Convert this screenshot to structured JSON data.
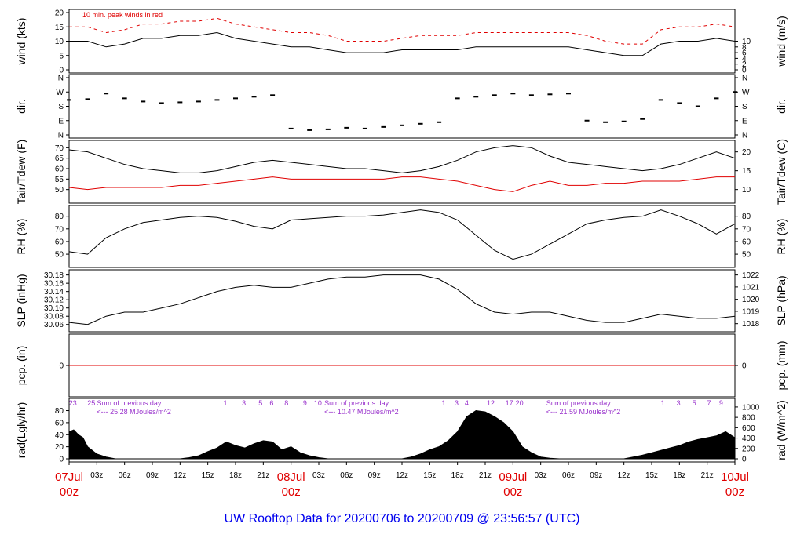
{
  "title": "UW Rooftop Data for 20200706  to  20200709 @ 23:56:57  (UTC)",
  "colors": {
    "frame": "#000000",
    "series_primary": "#000000",
    "series_red": "#e00000",
    "annotation": "#9932cc",
    "date_label": "#e00000",
    "title": "#0000ee",
    "zero_line": "#e00000"
  },
  "x_axis": {
    "range_hours": [
      0,
      72
    ],
    "ticks": [
      {
        "hour": 3,
        "label": "03z"
      },
      {
        "hour": 6,
        "label": "06z"
      },
      {
        "hour": 9,
        "label": "09z"
      },
      {
        "hour": 12,
        "label": "12z"
      },
      {
        "hour": 15,
        "label": "15z"
      },
      {
        "hour": 18,
        "label": "18z"
      },
      {
        "hour": 21,
        "label": "21z"
      },
      {
        "hour": 27,
        "label": "03z"
      },
      {
        "hour": 30,
        "label": "06z"
      },
      {
        "hour": 33,
        "label": "09z"
      },
      {
        "hour": 36,
        "label": "12z"
      },
      {
        "hour": 39,
        "label": "15z"
      },
      {
        "hour": 42,
        "label": "18z"
      },
      {
        "hour": 45,
        "label": "21z"
      },
      {
        "hour": 51,
        "label": "03z"
      },
      {
        "hour": 54,
        "label": "06z"
      },
      {
        "hour": 57,
        "label": "09z"
      },
      {
        "hour": 60,
        "label": "12z"
      },
      {
        "hour": 63,
        "label": "15z"
      },
      {
        "hour": 66,
        "label": "18z"
      },
      {
        "hour": 69,
        "label": "21z"
      }
    ],
    "day_labels": [
      {
        "hour": 0,
        "date": "07Jul",
        "time": "00z"
      },
      {
        "hour": 24,
        "date": "08Jul",
        "time": "00z"
      },
      {
        "hour": 48,
        "date": "09Jul",
        "time": "00z"
      },
      {
        "hour": 72,
        "date": "10Jul",
        "time": "00z"
      }
    ]
  },
  "chart_data": [
    {
      "type": "line",
      "name": "wind",
      "ylabel_left": "wind (kts)",
      "ylabel_right": "wind (m/s)",
      "ylim": [
        0,
        20
      ],
      "yticks_left": [
        0,
        5,
        10,
        15,
        20
      ],
      "yticks_right": [
        0,
        2,
        4,
        6,
        8,
        10
      ],
      "annotation": "10 min. peak winds in red",
      "series": [
        {
          "name": "wind",
          "x": [
            0,
            2,
            4,
            6,
            8,
            10,
            12,
            14,
            16,
            18,
            20,
            22,
            24,
            26,
            28,
            30,
            32,
            34,
            36,
            38,
            40,
            42,
            44,
            46,
            48,
            50,
            52,
            54,
            56,
            58,
            60,
            62,
            64,
            66,
            68,
            70,
            72
          ],
          "y": [
            10,
            10,
            8,
            9,
            11,
            11,
            12,
            12,
            13,
            11,
            10,
            9,
            8,
            8,
            7,
            6,
            6,
            6,
            7,
            7,
            7,
            7,
            8,
            8,
            8,
            8,
            8,
            8,
            7,
            6,
            5,
            5,
            9,
            10,
            10,
            11,
            10
          ]
        },
        {
          "name": "peak",
          "x": [
            0,
            2,
            4,
            6,
            8,
            10,
            12,
            14,
            16,
            18,
            20,
            22,
            24,
            26,
            28,
            30,
            32,
            34,
            36,
            38,
            40,
            42,
            44,
            46,
            48,
            50,
            52,
            54,
            56,
            58,
            60,
            62,
            64,
            66,
            68,
            70,
            72
          ],
          "y": [
            15,
            15,
            13,
            14,
            16,
            16,
            17,
            17,
            18,
            16,
            15,
            14,
            13,
            13,
            12,
            10,
            10,
            10,
            11,
            12,
            12,
            12,
            13,
            13,
            13,
            13,
            13,
            13,
            12,
            10,
            9,
            9,
            14,
            15,
            15,
            16,
            15
          ]
        }
      ]
    },
    {
      "type": "scatter",
      "name": "dir",
      "ylabel_left": "dir.",
      "ylabel_right": "dir.",
      "ylim": [
        0,
        360
      ],
      "yticks_left": [
        {
          "v": 0,
          "label": "N"
        },
        {
          "v": 90,
          "label": "E"
        },
        {
          "v": 180,
          "label": "S"
        },
        {
          "v": 270,
          "label": "W"
        },
        {
          "v": 360,
          "label": "N"
        }
      ],
      "yticks_right": [
        {
          "v": 0,
          "label": "N"
        },
        {
          "v": 90,
          "label": "E"
        },
        {
          "v": 180,
          "label": "S"
        },
        {
          "v": 270,
          "label": "W"
        },
        {
          "v": 360,
          "label": "N"
        }
      ],
      "series": [
        {
          "name": "dir",
          "x": [
            0,
            2,
            4,
            6,
            8,
            10,
            12,
            14,
            16,
            18,
            20,
            22,
            24,
            26,
            28,
            30,
            32,
            34,
            36,
            38,
            40,
            42,
            44,
            46,
            48,
            50,
            52,
            54,
            56,
            58,
            60,
            62,
            64,
            66,
            68,
            70,
            72
          ],
          "y": [
            220,
            225,
            260,
            230,
            210,
            200,
            205,
            210,
            220,
            230,
            240,
            250,
            40,
            30,
            35,
            45,
            40,
            50,
            60,
            70,
            80,
            230,
            240,
            250,
            260,
            250,
            255,
            260,
            90,
            80,
            85,
            100,
            220,
            200,
            180,
            230,
            270
          ]
        }
      ]
    },
    {
      "type": "line",
      "name": "temp",
      "ylabel_left": "Tair/Tdew (F)",
      "ylabel_right": "Tair/Tdew (C)",
      "ylim": [
        45,
        72
      ],
      "yticks_left": [
        50,
        55,
        60,
        65,
        70
      ],
      "yticks_right": [
        {
          "v": 50,
          "label": "10"
        },
        {
          "v": 59,
          "label": "15"
        },
        {
          "v": 68,
          "label": "20"
        }
      ],
      "series": [
        {
          "name": "Tair",
          "x": [
            0,
            2,
            4,
            6,
            8,
            10,
            12,
            14,
            16,
            18,
            20,
            22,
            24,
            26,
            28,
            30,
            32,
            34,
            36,
            38,
            40,
            42,
            44,
            46,
            48,
            50,
            52,
            54,
            56,
            58,
            60,
            62,
            64,
            66,
            68,
            70,
            72
          ],
          "y": [
            69,
            68,
            65,
            62,
            60,
            59,
            58,
            58,
            59,
            61,
            63,
            64,
            63,
            62,
            61,
            60,
            60,
            59,
            58,
            59,
            61,
            64,
            68,
            70,
            71,
            70,
            66,
            63,
            62,
            61,
            60,
            59,
            60,
            62,
            65,
            68,
            65
          ]
        },
        {
          "name": "Tdew",
          "x": [
            0,
            2,
            4,
            6,
            8,
            10,
            12,
            14,
            16,
            18,
            20,
            22,
            24,
            26,
            28,
            30,
            32,
            34,
            36,
            38,
            40,
            42,
            44,
            46,
            48,
            50,
            52,
            54,
            56,
            58,
            60,
            62,
            64,
            66,
            68,
            70,
            72
          ],
          "y": [
            51,
            50,
            51,
            51,
            51,
            51,
            52,
            52,
            53,
            54,
            55,
            56,
            55,
            55,
            55,
            55,
            55,
            55,
            56,
            56,
            55,
            54,
            52,
            50,
            49,
            52,
            54,
            52,
            52,
            53,
            53,
            54,
            54,
            54,
            55,
            56,
            56
          ]
        }
      ]
    },
    {
      "type": "line",
      "name": "rh",
      "ylabel_left": "RH (%)",
      "ylabel_right": "RH (%)",
      "ylim": [
        42,
        86
      ],
      "yticks_left": [
        50,
        60,
        70,
        80
      ],
      "yticks_right": [
        50,
        60,
        70,
        80
      ],
      "series": [
        {
          "name": "RH",
          "x": [
            0,
            2,
            4,
            6,
            8,
            10,
            12,
            14,
            16,
            18,
            20,
            22,
            24,
            26,
            28,
            30,
            32,
            34,
            36,
            38,
            40,
            42,
            44,
            46,
            48,
            50,
            52,
            54,
            56,
            58,
            60,
            62,
            64,
            66,
            68,
            70,
            72
          ],
          "y": [
            52,
            50,
            63,
            70,
            75,
            77,
            79,
            80,
            79,
            76,
            72,
            70,
            77,
            78,
            79,
            80,
            80,
            81,
            83,
            85,
            83,
            77,
            65,
            53,
            46,
            50,
            58,
            66,
            74,
            77,
            79,
            80,
            85,
            80,
            74,
            66,
            74
          ]
        }
      ]
    },
    {
      "type": "line",
      "name": "slp",
      "ylabel_left": "SLP (inHg)",
      "ylabel_right": "SLP (hPa)",
      "ylim": [
        30.05,
        30.185
      ],
      "yticks_left": [
        {
          "v": 30.06,
          "label": "30.06"
        },
        {
          "v": 30.08,
          "label": "30.08"
        },
        {
          "v": 30.1,
          "label": "30.10"
        },
        {
          "v": 30.12,
          "label": "30.12"
        },
        {
          "v": 30.14,
          "label": "30.14"
        },
        {
          "v": 30.16,
          "label": "30.16"
        },
        {
          "v": 30.18,
          "label": "30.18"
        }
      ],
      "yticks_right": [
        {
          "v": 30.062,
          "label": "1018"
        },
        {
          "v": 30.092,
          "label": "1019"
        },
        {
          "v": 30.121,
          "label": "1020"
        },
        {
          "v": 30.151,
          "label": "1021"
        },
        {
          "v": 30.18,
          "label": "1022"
        }
      ],
      "series": [
        {
          "name": "SLP",
          "x": [
            0,
            2,
            4,
            6,
            8,
            10,
            12,
            14,
            16,
            18,
            20,
            22,
            24,
            26,
            28,
            30,
            32,
            34,
            36,
            38,
            40,
            42,
            44,
            46,
            48,
            50,
            52,
            54,
            56,
            58,
            60,
            62,
            64,
            66,
            68,
            70,
            72
          ],
          "y": [
            30.065,
            30.06,
            30.08,
            30.09,
            30.09,
            30.1,
            30.11,
            30.125,
            30.14,
            30.15,
            30.155,
            30.15,
            30.15,
            30.16,
            30.17,
            30.175,
            30.175,
            30.18,
            30.18,
            30.18,
            30.17,
            30.145,
            30.11,
            30.09,
            30.085,
            30.09,
            30.09,
            30.08,
            30.07,
            30.065,
            30.065,
            30.075,
            30.085,
            30.08,
            30.075,
            30.075,
            30.08
          ]
        }
      ]
    },
    {
      "type": "line",
      "name": "pcp",
      "ylabel_left": "pcp. (in)",
      "ylabel_right": "pcp. (mm)",
      "ylim": [
        -1,
        1
      ],
      "yticks_left": [
        0
      ],
      "yticks_right": [
        0
      ],
      "series": [
        {
          "name": "pcp",
          "x": [
            0,
            72
          ],
          "y": [
            0,
            0
          ]
        }
      ]
    },
    {
      "type": "area",
      "name": "rad",
      "ylabel_left": "rad(Lgly/hr)",
      "ylabel_right": "rad (W/m^2)",
      "ylim": [
        0,
        95
      ],
      "yticks_left": [
        0,
        20,
        40,
        60,
        80
      ],
      "yticks_right": [
        {
          "v": 0,
          "label": "0"
        },
        {
          "v": 17.2,
          "label": "200"
        },
        {
          "v": 34.4,
          "label": "400"
        },
        {
          "v": 51.6,
          "label": "600"
        },
        {
          "v": 68.8,
          "label": "800"
        },
        {
          "v": 86,
          "label": "1000"
        }
      ],
      "series": [
        {
          "name": "rad",
          "x": [
            0,
            0.5,
            1,
            1.5,
            2,
            3,
            4,
            5,
            12,
            13,
            14,
            15,
            16,
            17,
            18,
            19,
            20,
            21,
            22,
            23,
            24,
            25,
            26,
            27,
            28,
            29,
            36,
            37,
            38,
            39,
            40,
            41,
            42,
            43,
            44,
            45,
            46,
            47,
            48,
            49,
            50,
            51,
            52,
            53,
            60,
            61,
            62,
            63,
            64,
            65,
            66,
            67,
            68,
            69,
            70,
            71,
            72
          ],
          "y": [
            45,
            48,
            40,
            35,
            20,
            8,
            3,
            0,
            0,
            2,
            5,
            12,
            18,
            28,
            22,
            18,
            25,
            30,
            28,
            15,
            20,
            10,
            5,
            2,
            0,
            0,
            0,
            3,
            8,
            15,
            20,
            30,
            45,
            70,
            80,
            78,
            70,
            60,
            45,
            20,
            10,
            3,
            1,
            0,
            0,
            3,
            6,
            10,
            14,
            18,
            22,
            28,
            32,
            35,
            38,
            45,
            35
          ]
        }
      ],
      "annotations": [
        {
          "hour": 0.4,
          "text": "23"
        },
        {
          "hour": 2.4,
          "text": "25"
        },
        {
          "hour": 16.9,
          "text": "1"
        },
        {
          "hour": 18.9,
          "text": "3"
        },
        {
          "hour": 20.7,
          "text": "5"
        },
        {
          "hour": 21.9,
          "text": "6"
        },
        {
          "hour": 23.5,
          "text": "8"
        },
        {
          "hour": 25.5,
          "text": "9"
        },
        {
          "hour": 26.9,
          "text": "10"
        },
        {
          "hour": 40.5,
          "text": "1"
        },
        {
          "hour": 41.9,
          "text": "3"
        },
        {
          "hour": 43.0,
          "text": "4"
        },
        {
          "hour": 45.6,
          "text": "12"
        },
        {
          "hour": 47.6,
          "text": "17"
        },
        {
          "hour": 48.7,
          "text": "20"
        },
        {
          "hour": 64.2,
          "text": "1"
        },
        {
          "hour": 65.9,
          "text": "3"
        },
        {
          "hour": 67.6,
          "text": "5"
        },
        {
          "hour": 69.2,
          "text": "7"
        },
        {
          "hour": 70.5,
          "text": "9"
        }
      ],
      "daily_totals": [
        {
          "hour": 3.0,
          "line1": "Sum of previous day",
          "line2": "<--- 25.28 MJoules/m^2"
        },
        {
          "hour": 27.6,
          "line1": "Sum of previous day",
          "line2": "<--- 10.47 MJoules/m^2"
        },
        {
          "hour": 51.6,
          "line1": "Sum of previous day",
          "line2": "<--- 21.59 MJoules/m^2"
        }
      ]
    }
  ]
}
